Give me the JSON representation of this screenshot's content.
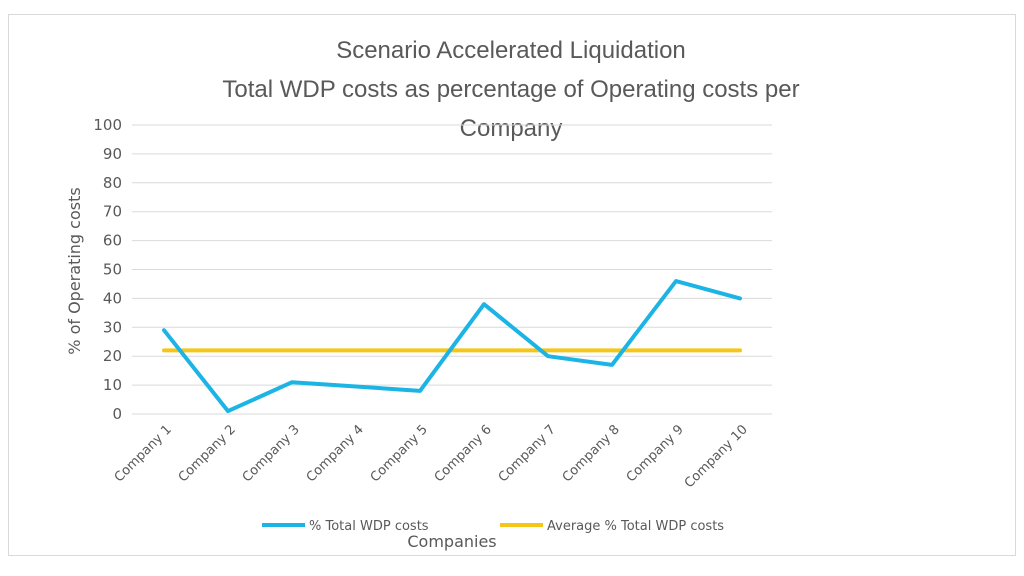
{
  "chart_data": {
    "type": "line",
    "title_lines": [
      "Scenario Accelerated Liquidation",
      "Total WDP costs as percentage of Operating costs per",
      "Company"
    ],
    "xlabel": "Companies",
    "ylabel": "% of Operating costs",
    "categories": [
      "Company 1",
      "Company 2",
      "Company 3",
      "Company 4",
      "Company 5",
      "Company 6",
      "Company 7",
      "Company 8",
      "Company 9",
      "Company 10"
    ],
    "ylim": [
      0,
      100
    ],
    "yticks": [
      "0",
      "10",
      "20",
      "30",
      "40",
      "50",
      "60",
      "70",
      "80",
      "90",
      "100"
    ],
    "grid": true,
    "legend_position": "bottom",
    "series": [
      {
        "name": "% Total WDP costs",
        "color": "#1cb4e4",
        "values": [
          29,
          1,
          11,
          9.5,
          8,
          38,
          20,
          17,
          46,
          40
        ]
      },
      {
        "name": "Average % Total WDP costs",
        "color": "#f5c518",
        "values": [
          22,
          22,
          22,
          22,
          22,
          22,
          22,
          22,
          22,
          22
        ]
      }
    ]
  }
}
